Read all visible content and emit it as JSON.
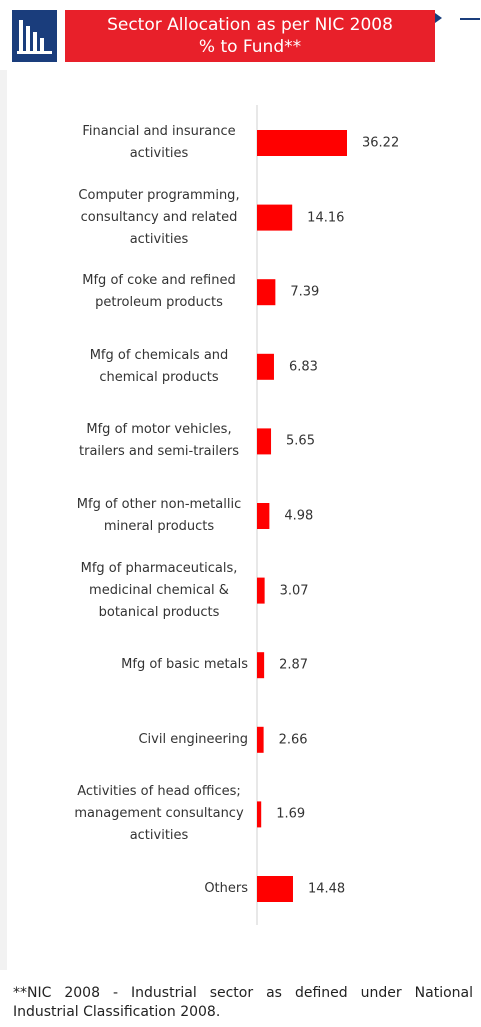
{
  "title": "Sector Allocation as per NIC 2008 % to Fund**",
  "chart_data": {
    "type": "bar",
    "orientation": "horizontal",
    "color": "#ff0000",
    "categories": [
      "Financial and insurance activities",
      "Computer programming, consultancy and related activities",
      "Mfg of coke and refined petroleum products",
      "Mfg of chemicals and chemical products",
      "Mfg of motor vehicles, trailers and semi-trailers",
      "Mfg of other non-metallic mineral products",
      "Mfg of pharmaceuticals, medicinal chemical & botanical products",
      "Mfg of basic metals",
      "Civil engineering",
      "Activities of head offices; management consultancy activities",
      "Others"
    ],
    "values": [
      36.22,
      14.16,
      7.39,
      6.83,
      5.65,
      4.98,
      3.07,
      2.87,
      2.66,
      1.69,
      14.48
    ]
  },
  "footnote": "**NIC 2008 - Industrial sector as defined under National Industrial Classification 2008."
}
